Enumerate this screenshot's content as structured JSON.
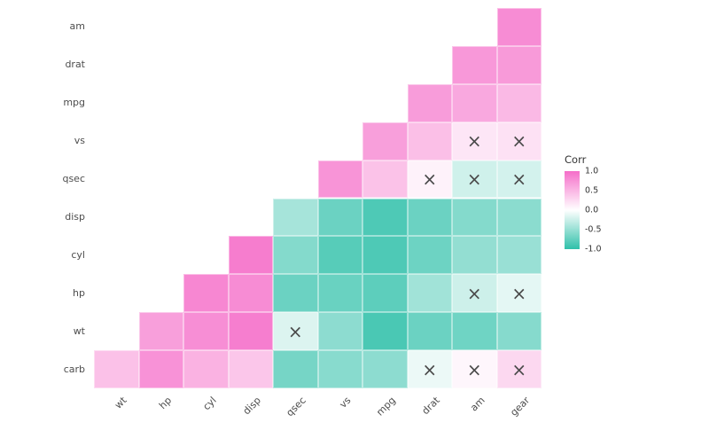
{
  "chart_data": {
    "type": "heatmap",
    "title": "",
    "x_categories": [
      "wt",
      "hp",
      "cyl",
      "disp",
      "qsec",
      "vs",
      "mpg",
      "drat",
      "am",
      "gear"
    ],
    "y_categories": [
      "am",
      "drat",
      "mpg",
      "vs",
      "qsec",
      "disp",
      "cyl",
      "hp",
      "wt",
      "carb"
    ],
    "legend": {
      "title": "Corr",
      "ticks": [
        "1.0",
        "0.5",
        "0.0",
        "-0.5",
        "-1.0"
      ],
      "max": 1.0,
      "min": -1.0,
      "position": "right"
    },
    "colors": {
      "positive": "#f56ec9",
      "negative": "#2fc0a9",
      "zero": "#ffffff",
      "cross": "#4a4a4a",
      "axis_text": "#4d4d4d",
      "background": "#ffffff"
    },
    "grid": false,
    "cross_meaning": "non-significant correlation",
    "cells": [
      {
        "row": "am",
        "col": "gear",
        "value": 0.79,
        "cross": false
      },
      {
        "row": "drat",
        "col": "am",
        "value": 0.71,
        "cross": false
      },
      {
        "row": "drat",
        "col": "gear",
        "value": 0.7,
        "cross": false
      },
      {
        "row": "mpg",
        "col": "drat",
        "value": 0.68,
        "cross": false
      },
      {
        "row": "mpg",
        "col": "am",
        "value": 0.6,
        "cross": false
      },
      {
        "row": "mpg",
        "col": "gear",
        "value": 0.48,
        "cross": false
      },
      {
        "row": "vs",
        "col": "mpg",
        "value": 0.66,
        "cross": false
      },
      {
        "row": "vs",
        "col": "drat",
        "value": 0.44,
        "cross": false
      },
      {
        "row": "vs",
        "col": "am",
        "value": 0.17,
        "cross": true
      },
      {
        "row": "vs",
        "col": "gear",
        "value": 0.21,
        "cross": true
      },
      {
        "row": "qsec",
        "col": "vs",
        "value": 0.74,
        "cross": false
      },
      {
        "row": "qsec",
        "col": "mpg",
        "value": 0.42,
        "cross": false
      },
      {
        "row": "qsec",
        "col": "drat",
        "value": 0.09,
        "cross": true
      },
      {
        "row": "qsec",
        "col": "am",
        "value": -0.23,
        "cross": true
      },
      {
        "row": "qsec",
        "col": "gear",
        "value": -0.21,
        "cross": true
      },
      {
        "row": "disp",
        "col": "qsec",
        "value": -0.43,
        "cross": false
      },
      {
        "row": "disp",
        "col": "vs",
        "value": -0.71,
        "cross": false
      },
      {
        "row": "disp",
        "col": "mpg",
        "value": -0.85,
        "cross": false
      },
      {
        "row": "disp",
        "col": "drat",
        "value": -0.71,
        "cross": false
      },
      {
        "row": "disp",
        "col": "am",
        "value": -0.59,
        "cross": false
      },
      {
        "row": "disp",
        "col": "gear",
        "value": -0.56,
        "cross": false
      },
      {
        "row": "cyl",
        "col": "disp",
        "value": 0.9,
        "cross": false
      },
      {
        "row": "cyl",
        "col": "qsec",
        "value": -0.59,
        "cross": false
      },
      {
        "row": "cyl",
        "col": "vs",
        "value": -0.81,
        "cross": false
      },
      {
        "row": "cyl",
        "col": "mpg",
        "value": -0.85,
        "cross": false
      },
      {
        "row": "cyl",
        "col": "drat",
        "value": -0.7,
        "cross": false
      },
      {
        "row": "cyl",
        "col": "am",
        "value": -0.52,
        "cross": false
      },
      {
        "row": "cyl",
        "col": "gear",
        "value": -0.49,
        "cross": false
      },
      {
        "row": "hp",
        "col": "cyl",
        "value": 0.83,
        "cross": false
      },
      {
        "row": "hp",
        "col": "disp",
        "value": 0.79,
        "cross": false
      },
      {
        "row": "hp",
        "col": "qsec",
        "value": -0.71,
        "cross": false
      },
      {
        "row": "hp",
        "col": "vs",
        "value": -0.72,
        "cross": false
      },
      {
        "row": "hp",
        "col": "mpg",
        "value": -0.78,
        "cross": false
      },
      {
        "row": "hp",
        "col": "drat",
        "value": -0.45,
        "cross": false
      },
      {
        "row": "hp",
        "col": "am",
        "value": -0.24,
        "cross": true
      },
      {
        "row": "hp",
        "col": "gear",
        "value": -0.13,
        "cross": true
      },
      {
        "row": "wt",
        "col": "hp",
        "value": 0.66,
        "cross": false
      },
      {
        "row": "wt",
        "col": "cyl",
        "value": 0.78,
        "cross": false
      },
      {
        "row": "wt",
        "col": "disp",
        "value": 0.89,
        "cross": false
      },
      {
        "row": "wt",
        "col": "qsec",
        "value": -0.17,
        "cross": true
      },
      {
        "row": "wt",
        "col": "vs",
        "value": -0.55,
        "cross": false
      },
      {
        "row": "wt",
        "col": "mpg",
        "value": -0.87,
        "cross": false
      },
      {
        "row": "wt",
        "col": "drat",
        "value": -0.71,
        "cross": false
      },
      {
        "row": "wt",
        "col": "am",
        "value": -0.69,
        "cross": false
      },
      {
        "row": "wt",
        "col": "gear",
        "value": -0.58,
        "cross": false
      },
      {
        "row": "carb",
        "col": "wt",
        "value": 0.43,
        "cross": false
      },
      {
        "row": "carb",
        "col": "hp",
        "value": 0.75,
        "cross": false
      },
      {
        "row": "carb",
        "col": "cyl",
        "value": 0.53,
        "cross": false
      },
      {
        "row": "carb",
        "col": "disp",
        "value": 0.39,
        "cross": false
      },
      {
        "row": "carb",
        "col": "qsec",
        "value": -0.66,
        "cross": false
      },
      {
        "row": "carb",
        "col": "vs",
        "value": -0.57,
        "cross": false
      },
      {
        "row": "carb",
        "col": "mpg",
        "value": -0.55,
        "cross": false
      },
      {
        "row": "carb",
        "col": "drat",
        "value": -0.09,
        "cross": true
      },
      {
        "row": "carb",
        "col": "am",
        "value": 0.06,
        "cross": true
      },
      {
        "row": "carb",
        "col": "gear",
        "value": 0.27,
        "cross": true
      }
    ]
  }
}
